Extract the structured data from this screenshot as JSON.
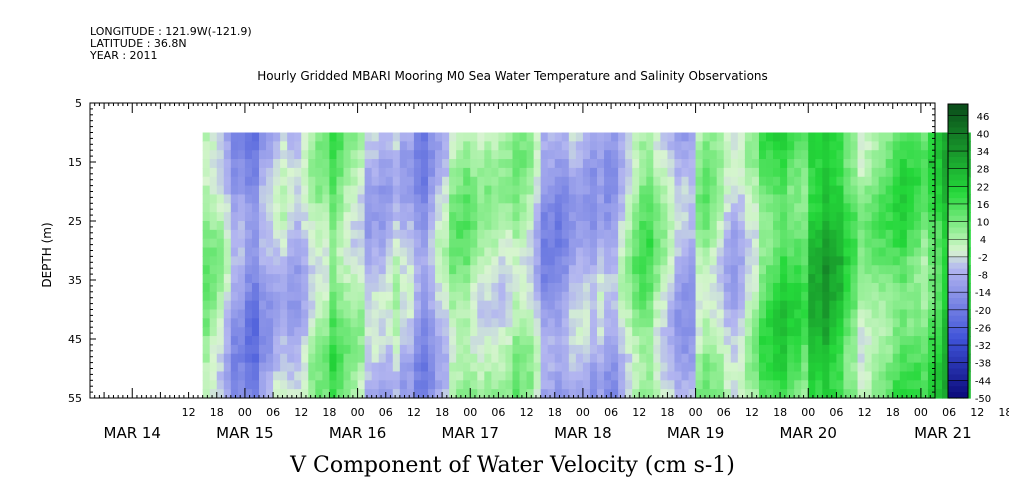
{
  "header": {
    "longitude": "LONGITUDE : 121.9W(-121.9)",
    "latitude": "LATITUDE : 36.8N",
    "year": "YEAR : 2011"
  },
  "chart_data": {
    "type": "heatmap",
    "title": "Hourly Gridded MBARI Mooring M0 Sea Water Temperature and Salinity Observations",
    "xlabel": "V Component of Water Velocity (cm s-1)",
    "ylabel": "DEPTH (m)",
    "y_reversed": true,
    "ylim": [
      5,
      55
    ],
    "y_ticks": [
      5,
      15,
      25,
      35,
      45,
      55
    ],
    "x_hour_labels": [
      "12",
      "18",
      "00",
      "06",
      "12",
      "18",
      "00",
      "06",
      "12",
      "18",
      "00",
      "06",
      "12",
      "18",
      "00",
      "06",
      "12",
      "18",
      "00",
      "06",
      "12",
      "18",
      "00",
      "06",
      "12",
      "18",
      "00",
      "06",
      "12",
      "18",
      "00",
      "06"
    ],
    "x_date_labels": [
      "MAR 14",
      "MAR 15",
      "MAR 16",
      "MAR 17",
      "MAR 18",
      "MAR 19",
      "MAR 20",
      "MAR 21"
    ],
    "data_extent": {
      "start": "MAR 14 15:00",
      "end": "MAR 21 10:00",
      "depth_top": 10,
      "depth_bottom": 55
    },
    "colorbar": {
      "min": -50,
      "max": 50,
      "step": 2,
      "labels": [
        "46",
        "40",
        "34",
        "28",
        "22",
        "16",
        "10",
        "4",
        "-2",
        "-8",
        "-14",
        "-20",
        "-26",
        "-32",
        "-38",
        "-44",
        "-50"
      ]
    },
    "colors": {
      "neg_strong": "#0a0a7a",
      "neg_mid": "#3f53d8",
      "neg_light": "#b3b6f0",
      "zero": "#d8f5d0",
      "pos_light": "#9cf09c",
      "pos_mid": "#24d83a",
      "pos_strong": "#0a4a1a"
    },
    "field_profile_by_day": [
      {
        "day": "MAR 14",
        "mean": 1
      },
      {
        "day": "MAR 15",
        "mean": -4
      },
      {
        "day": "MAR 16",
        "mean": 0
      },
      {
        "day": "MAR 17",
        "mean": -2
      },
      {
        "day": "MAR 18",
        "mean": -6
      },
      {
        "day": "MAR 19",
        "mean": 8
      },
      {
        "day": "MAR 20",
        "mean": 18
      },
      {
        "day": "MAR 21",
        "mean": 12
      }
    ]
  }
}
